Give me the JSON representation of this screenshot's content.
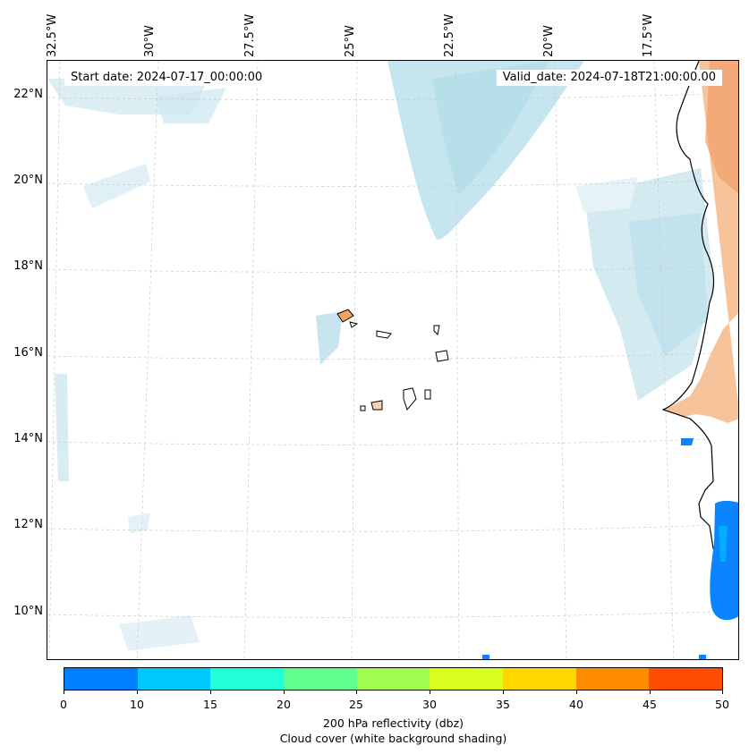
{
  "map": {
    "start_date": "Start date: 2024-07-17_00:00:00",
    "valid_date": "Valid_date: 2024-07-18T21:00:00.00",
    "longitude_labels": [
      "32.5°W",
      "30°W",
      "27.5°W",
      "25°W",
      "22.5°W",
      "20°W",
      "17.5°W"
    ],
    "latitude_labels": [
      "22°N",
      "20°N",
      "18°N",
      "16°N",
      "14°N",
      "12°N",
      "10°N"
    ],
    "land_color": "#f4a460",
    "cloud_color": "#a8d8e6",
    "reflectivity_color": "#0a84ff"
  },
  "colorbar": {
    "ticks": [
      "0",
      "10",
      "15",
      "20",
      "25",
      "30",
      "35",
      "40",
      "45",
      "50"
    ],
    "colors": [
      "#0080ff",
      "#00c8ff",
      "#20ffd8",
      "#60ff90",
      "#a0ff50",
      "#d8ff20",
      "#ffd800",
      "#ff8c00",
      "#ff4c00"
    ],
    "label_line1": "200 hPa reflectivity (dbz)",
    "label_line2": "Cloud cover (white background shading)"
  }
}
